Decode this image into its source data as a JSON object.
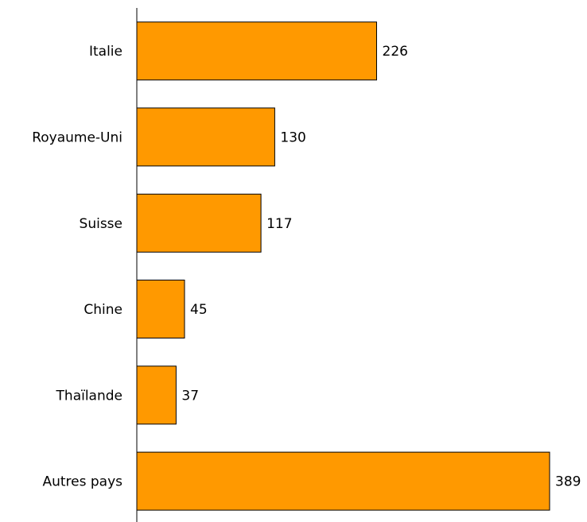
{
  "chart_data": {
    "type": "bar",
    "orientation": "horizontal",
    "categories": [
      "Italie",
      "Royaume-Uni",
      "Suisse",
      "Chine",
      "Thaïlande",
      "Autres pays"
    ],
    "values": [
      226,
      130,
      117,
      45,
      37,
      389
    ],
    "data_labels": [
      "226",
      "130",
      "117",
      "45",
      "37",
      "389"
    ],
    "title": "",
    "xlabel": "",
    "ylabel": "",
    "xlim": [
      0,
      389
    ],
    "grid": false,
    "legend": "none",
    "bar_color": "#ff9900",
    "bar_edge_color": "#000000"
  }
}
